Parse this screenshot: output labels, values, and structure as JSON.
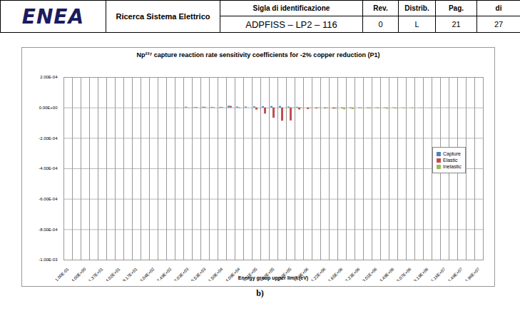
{
  "header": {
    "logo": "ENEA",
    "program": "Ricerca Sistema Elettrico",
    "fields": [
      {
        "label": "Sigla di identificazione",
        "value": "ADPFISS – LP2 – 116"
      },
      {
        "label": "Rev.",
        "value": "0"
      },
      {
        "label": "Distrib.",
        "value": "L"
      },
      {
        "label": "Pag.",
        "value": "21"
      },
      {
        "label": "di",
        "value": "27"
      }
    ]
  },
  "chart_data": {
    "type": "bar",
    "title": "Np²³⁷ capture reaction rate sensitivity coefficients for -2% copper reduction (P1)",
    "x_label": "Energy group upper limit (eV)",
    "categories": [
      "1.00E-01",
      null,
      "4.00E+00",
      null,
      "1.37E+01",
      null,
      "4.02E+01",
      null,
      "9.17E+01",
      null,
      "3.04E+02",
      null,
      "7.49E+02",
      null,
      "2.03E+03",
      null,
      "5.53E+03",
      null,
      "1.50E+04",
      null,
      "4.09E+04",
      null,
      "1.11E+05",
      null,
      "3.02E+05",
      null,
      "8.23E+05",
      null,
      "1.00E+06",
      null,
      "1.22E+06",
      null,
      "1.65E+06",
      null,
      "2.23E+06",
      null,
      "3.01E+06",
      null,
      "4.49E+06",
      null,
      "6.07E+06",
      null,
      "8.19E+06",
      null,
      "1.16E+07",
      null,
      "1.49E+07",
      null,
      "1.96E+07"
    ],
    "series": [
      {
        "name": "Capture",
        "color": "#4f81bd",
        "values": [
          0,
          0,
          0,
          0,
          0,
          0,
          0,
          0,
          0,
          0,
          0,
          0,
          0,
          1e-06,
          5e-06,
          3e-06,
          5e-06,
          4e-06,
          4e-06,
          1.1e-05,
          6e-06,
          6e-06,
          7.5e-06,
          8.5e-06,
          9.5e-06,
          9.5e-06,
          6e-06,
          4.5e-06,
          0,
          0,
          0,
          0,
          0,
          0,
          0,
          0,
          0,
          0,
          0,
          0,
          0,
          0,
          0,
          0,
          0,
          0,
          0,
          0,
          0
        ]
      },
      {
        "name": "Elastic",
        "color": "#c0504d",
        "values": [
          0,
          0,
          0,
          0,
          0,
          0,
          0,
          0,
          0,
          0,
          0,
          0,
          0,
          0,
          1e-06,
          3.5e-06,
          4e-06,
          3e-06,
          3e-06,
          1e-05,
          -3e-06,
          5e-07,
          -1.35e-05,
          -4e-05,
          -6.7e-05,
          -8.7e-05,
          -8.5e-05,
          -1.3e-05,
          -1e-05,
          -6e-06,
          -5e-06,
          -7e-06,
          -4.5e-06,
          -4e-06,
          -3e-06,
          -3e-06,
          -2.5e-06,
          -2e-06,
          -2e-06,
          -1e-06,
          -1e-06,
          -5e-07,
          0,
          0,
          0,
          0,
          0,
          0,
          0
        ]
      },
      {
        "name": "Inelastic",
        "color": "#9bbb59",
        "values": [
          0,
          0,
          0,
          0,
          0,
          0,
          0,
          0,
          0,
          0,
          0,
          0,
          0,
          0,
          0,
          0,
          0,
          0,
          0,
          0,
          0,
          0,
          0,
          0,
          0,
          0,
          -2e-06,
          -3e-06,
          -4e-06,
          -3.5e-06,
          -6e-06,
          -8e-06,
          -1.2e-05,
          -1.1e-05,
          -5e-06,
          -7e-06,
          -6e-06,
          -9e-06,
          -7e-06,
          -5e-06,
          -5e-06,
          -3e-06,
          -2e-06,
          -1e-06,
          -1e-06,
          -5e-07,
          0,
          0,
          0
        ]
      }
    ],
    "ylim": [
      -0.001,
      0.0002
    ],
    "yticks": [
      {
        "value": 0.0002,
        "label": "2.00E-04"
      },
      {
        "value": 0,
        "label": "0.00E+00"
      },
      {
        "value": -0.0002,
        "label": "-2.00E-04"
      },
      {
        "value": -0.0004,
        "label": "-4.00E-04"
      },
      {
        "value": -0.0006,
        "label": "-6.00E-04"
      },
      {
        "value": -0.0008,
        "label": "-8.00E-04"
      },
      {
        "value": -0.001,
        "label": "-1.00E-03"
      }
    ],
    "grid": true,
    "legend": "right"
  },
  "caption": "b)"
}
